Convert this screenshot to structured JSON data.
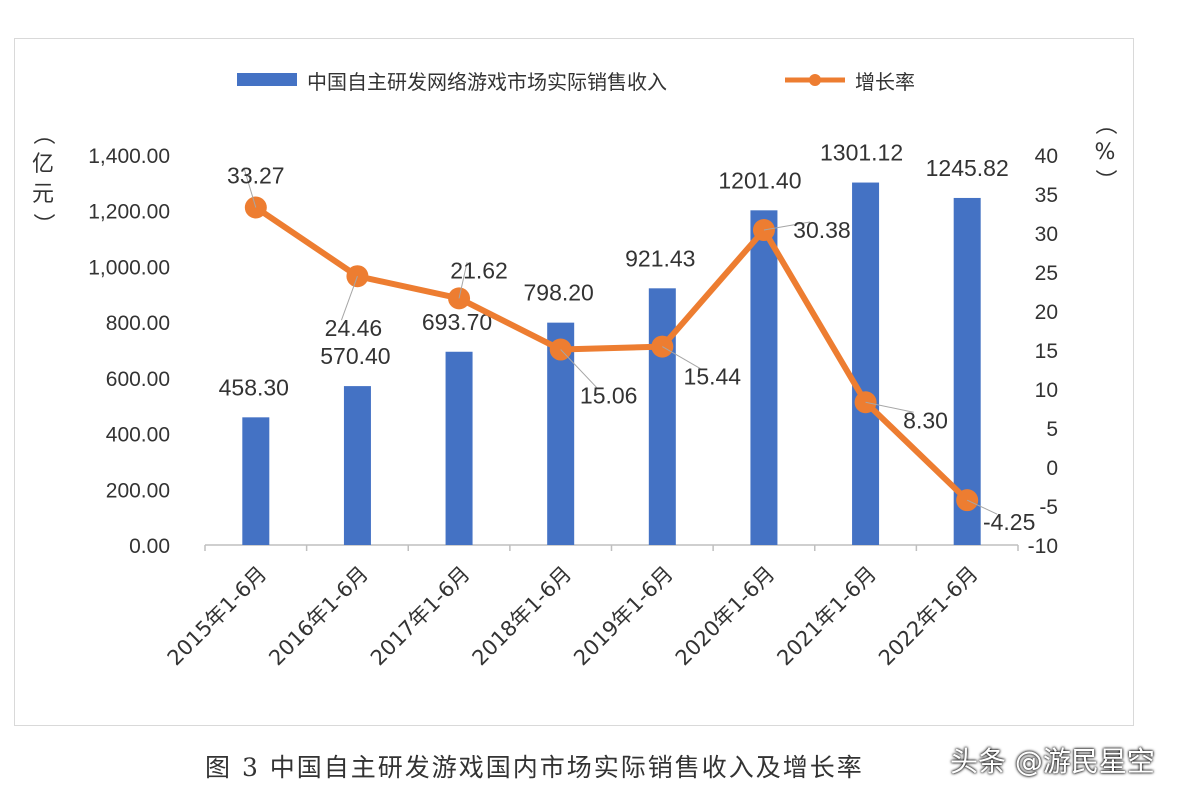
{
  "chart_data": {
    "type": "bar",
    "categories": [
      "2015年1-6月",
      "2016年1-6月",
      "2017年1-6月",
      "2018年1-6月",
      "2019年1-6月",
      "2020年1-6月",
      "2021年1-6月",
      "2022年1-6月"
    ],
    "series": [
      {
        "name": "中国自主研发网络游戏市场实际销售收入",
        "type": "bar",
        "axis": "left",
        "values": [
          458.3,
          570.4,
          693.7,
          798.2,
          921.43,
          1201.4,
          1301.12,
          1245.82
        ],
        "labels": [
          "458.30",
          "570.40",
          "693.70",
          "798.20",
          "921.43",
          "1201.40",
          "1301.12",
          "1245.82"
        ],
        "color": "#4472c4"
      },
      {
        "name": "增长率",
        "type": "line",
        "axis": "right",
        "values": [
          33.27,
          24.46,
          21.62,
          15.06,
          15.44,
          30.38,
          8.3,
          -4.25
        ],
        "labels": [
          "33.27",
          "24.46",
          "21.62",
          "15.06",
          "15.44",
          "30.38",
          "8.30",
          "-4.25"
        ],
        "color": "#ed7d31"
      }
    ],
    "ylabel_left": "（亿元）",
    "ylabel_right": "（%）",
    "ylim_left": [
      0,
      1400
    ],
    "ylim_right": [
      -10,
      40
    ],
    "yticks_left": [
      "0.00",
      "200.00",
      "400.00",
      "600.00",
      "800.00",
      "1,000.00",
      "1,200.00",
      "1,400.00"
    ],
    "yticks_right": [
      "-10",
      "-5",
      "0",
      "5",
      "10",
      "15",
      "20",
      "25",
      "30",
      "35",
      "40"
    ],
    "legend_position": "top",
    "grid": false
  },
  "caption": "图  3  中国自主研发游戏国内市场实际销售收入及增长率",
  "watermark": "头条 @游民星空"
}
